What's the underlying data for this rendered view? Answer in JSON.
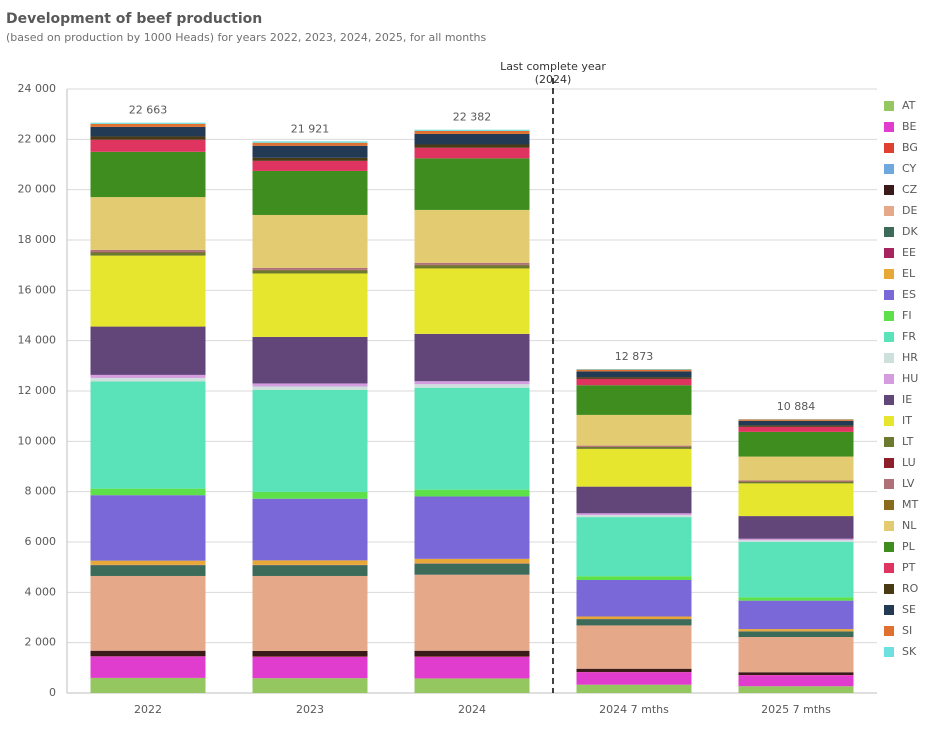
{
  "chart_data": {
    "type": "stacked_bar",
    "title": "Development of beef production",
    "subtitle": "(based on production by 1000 Heads) for years 2022, 2023, 2024, 2025, for all months",
    "annotation": [
      "Last complete year",
      "(2024)"
    ],
    "categories": [
      "2022",
      "2023",
      "2024",
      "2024 7 mths",
      "2025 7 mths"
    ],
    "totals": [
      22663,
      21921,
      22382,
      12873,
      10884
    ],
    "total_labels": [
      "22 663",
      "21 921",
      "22 382",
      "12 873",
      "10 884"
    ],
    "ylim": [
      0,
      24000
    ],
    "yticks": [
      0,
      {
        "value": 2000,
        "label": "2 000"
      },
      {
        "value": 4000,
        "label": "4 000"
      },
      {
        "value": 6000,
        "label": "6 000"
      },
      {
        "value": 8000,
        "label": "8 000"
      },
      {
        "value": 10000,
        "label": "10 000"
      },
      {
        "value": 12000,
        "label": "12 000"
      },
      {
        "value": 14000,
        "label": "14 000"
      },
      {
        "value": 16000,
        "label": "16 000"
      },
      {
        "value": 18000,
        "label": "18 000"
      },
      {
        "value": 20000,
        "label": "20 000"
      },
      {
        "value": 22000,
        "label": "22 000"
      },
      {
        "value": 24000,
        "label": "24 000"
      }
    ],
    "grid": true,
    "legend": "right",
    "series": [
      {
        "name": "AT",
        "color": "#95c760",
        "values": [
          600,
          590,
          580,
          330,
          270
        ]
      },
      {
        "name": "BE",
        "color": "#e03ccd",
        "values": [
          850,
          850,
          860,
          500,
          440
        ]
      },
      {
        "name": "BG",
        "color": "#e0402f",
        "values": [
          10,
          10,
          10,
          5,
          5
        ]
      },
      {
        "name": "CY",
        "color": "#6fa8dc",
        "values": [
          0,
          0,
          0,
          0,
          0
        ]
      },
      {
        "name": "CZ",
        "color": "#3b1a1a",
        "values": [
          220,
          220,
          230,
          130,
          110
        ]
      },
      {
        "name": "DE",
        "color": "#e5a98a",
        "values": [
          2970,
          2980,
          3020,
          1720,
          1400
        ]
      },
      {
        "name": "DK",
        "color": "#3d6b5a",
        "values": [
          430,
          430,
          440,
          250,
          220
        ]
      },
      {
        "name": "EE",
        "color": "#a8245f",
        "values": [
          10,
          10,
          10,
          5,
          5
        ]
      },
      {
        "name": "EL",
        "color": "#e8a838",
        "values": [
          170,
          180,
          180,
          100,
          90
        ]
      },
      {
        "name": "ES",
        "color": "#7a68d9",
        "values": [
          2600,
          2450,
          2480,
          1450,
          1130
        ]
      },
      {
        "name": "FI",
        "color": "#5ee04a",
        "values": [
          260,
          270,
          270,
          150,
          130
        ]
      },
      {
        "name": "FR",
        "color": "#5ae3b8",
        "values": [
          4260,
          4050,
          4050,
          2350,
          2200
        ]
      },
      {
        "name": "HR",
        "color": "#cde0dc",
        "values": [
          140,
          140,
          140,
          80,
          70
        ]
      },
      {
        "name": "HU",
        "color": "#d59de0",
        "values": [
          120,
          120,
          120,
          70,
          60
        ]
      },
      {
        "name": "IE",
        "color": "#62467a",
        "values": [
          1920,
          1850,
          1880,
          1060,
          900
        ]
      },
      {
        "name": "IT",
        "color": "#e6e62e",
        "values": [
          2820,
          2520,
          2600,
          1500,
          1300
        ]
      },
      {
        "name": "LT",
        "color": "#6b7a2e",
        "values": [
          130,
          130,
          130,
          75,
          65
        ]
      },
      {
        "name": "LU",
        "color": "#8c1f2a",
        "values": [
          15,
          15,
          15,
          10,
          10
        ]
      },
      {
        "name": "LV",
        "color": "#b07078",
        "values": [
          80,
          80,
          80,
          45,
          40
        ]
      },
      {
        "name": "MT",
        "color": "#8a6a1c",
        "values": [
          0,
          0,
          0,
          0,
          0
        ]
      },
      {
        "name": "NL",
        "color": "#e3cb72",
        "values": [
          2100,
          2100,
          2100,
          1220,
          950
        ]
      },
      {
        "name": "PL",
        "color": "#3f8c1f",
        "values": [
          1800,
          1750,
          2050,
          1180,
          980
        ]
      },
      {
        "name": "PT",
        "color": "#e03460",
        "values": [
          480,
          400,
          420,
          250,
          200
        ]
      },
      {
        "name": "RO",
        "color": "#4a3a14",
        "values": [
          130,
          120,
          130,
          70,
          60
        ]
      },
      {
        "name": "SE",
        "color": "#233a55",
        "values": [
          380,
          480,
          420,
          230,
          180
        ]
      },
      {
        "name": "SI",
        "color": "#e07030",
        "values": [
          120,
          120,
          120,
          70,
          55
        ]
      },
      {
        "name": "SK",
        "color": "#6de0e0",
        "values": [
          48,
          56,
          47,
          23,
          14
        ]
      }
    ]
  }
}
